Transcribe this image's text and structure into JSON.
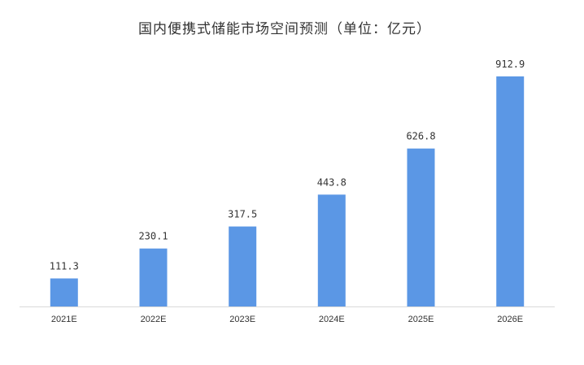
{
  "chart_data": {
    "type": "bar",
    "title": "国内便携式储能市场空间预测（单位：亿元）",
    "categories": [
      "2021E",
      "2022E",
      "2023E",
      "2024E",
      "2025E",
      "2026E"
    ],
    "series": [
      {
        "values": [
          111.3,
          230.1,
          317.5,
          443.8,
          626.8,
          912.9
        ],
        "data_labels": [
          "111.3",
          "230.1",
          "317.5",
          "443.8",
          "626.8",
          "912.9"
        ],
        "color": "#5b97e5"
      }
    ],
    "xlabel": "",
    "ylabel": "",
    "ylim": [
      0,
      912.9
    ],
    "grid": false,
    "legend": "none",
    "y_axis_visible": false
  }
}
